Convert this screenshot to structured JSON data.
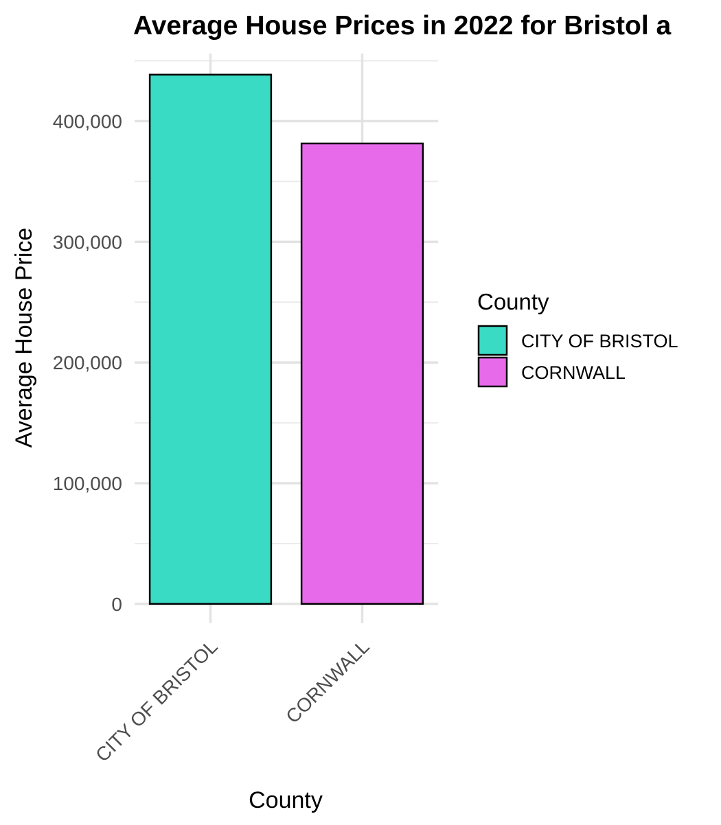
{
  "chart_data": {
    "type": "bar",
    "title": "Average House Prices in 2022 for Bristol a",
    "xlabel": "County",
    "ylabel": "Average House Price",
    "categories": [
      "CITY OF BRISTOL",
      "CORNWALL"
    ],
    "values": [
      438500,
      381500
    ],
    "colors": [
      "#3ADBC4",
      "#E76AEA"
    ],
    "bar_outline": "#000000",
    "ylim": [
      -16000,
      456000
    ],
    "y_ticks": [
      0,
      100000,
      200000,
      300000,
      400000
    ],
    "y_tick_labels": [
      "0",
      "100,000",
      "200,000",
      "300,000",
      "400,000"
    ],
    "grid": true,
    "legend": {
      "title": "County",
      "position": "right",
      "entries": [
        "CITY OF BRISTOL",
        "CORNWALL"
      ]
    }
  }
}
